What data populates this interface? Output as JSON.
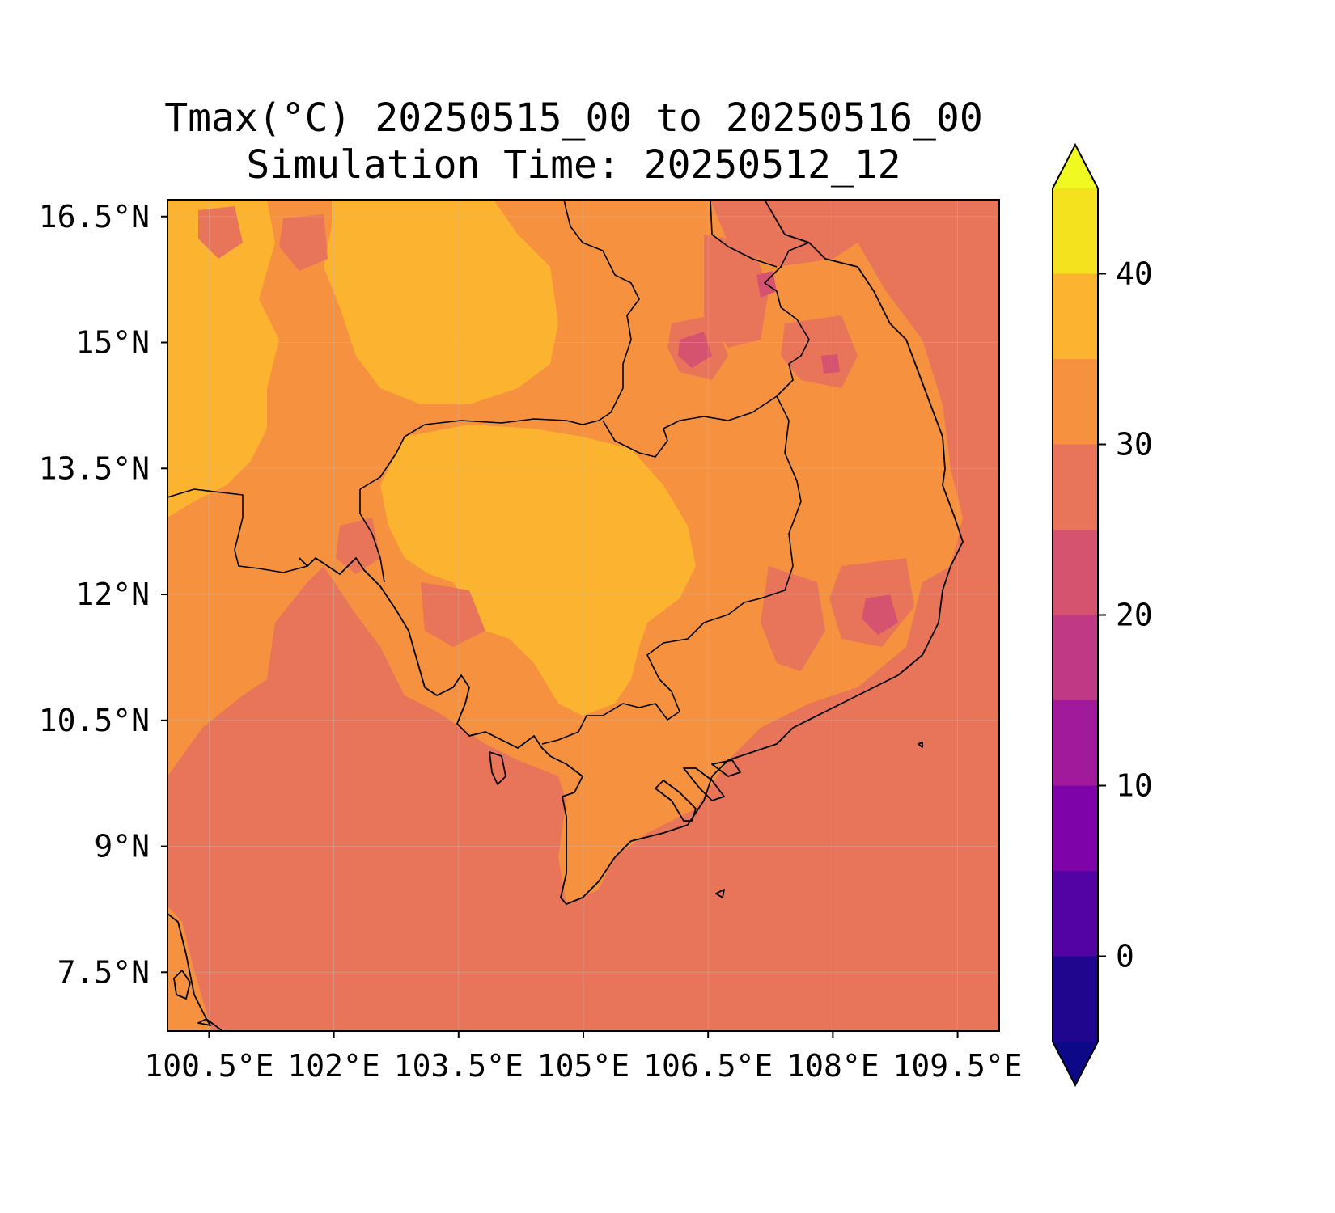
{
  "title": {
    "line1": "Tmax(°C) 20250515_00 to 20250516_00",
    "line2": "Simulation Time: 20250512_12"
  },
  "map": {
    "lon_range": [
      100.0,
      110.0
    ],
    "lat_range": [
      6.8,
      16.7
    ],
    "gridlines": true,
    "x_ticks": [
      {
        "value": 100.5,
        "label": "100.5°E"
      },
      {
        "value": 102.0,
        "label": "102°E"
      },
      {
        "value": 103.5,
        "label": "103.5°E"
      },
      {
        "value": 105.0,
        "label": "105°E"
      },
      {
        "value": 106.5,
        "label": "106.5°E"
      },
      {
        "value": 108.0,
        "label": "108°E"
      },
      {
        "value": 109.5,
        "label": "109.5°E"
      }
    ],
    "y_ticks": [
      {
        "value": 16.5,
        "label": "16.5°N"
      },
      {
        "value": 15.0,
        "label": "15°N"
      },
      {
        "value": 13.5,
        "label": "13.5°N"
      },
      {
        "value": 12.0,
        "label": "12°N"
      },
      {
        "value": 10.5,
        "label": "10.5°N"
      },
      {
        "value": 9.0,
        "label": "9°N"
      },
      {
        "value": 7.5,
        "label": "7.5°N"
      }
    ],
    "colors": {
      "band_25_30": "#e8745a",
      "band_30_35": "#f5913f",
      "band_35_40": "#fbb330",
      "band_20_25": "#d5536f",
      "coastline": "#000000"
    }
  },
  "colorbar": {
    "range": [
      -5,
      45
    ],
    "extend": "both",
    "bands": [
      {
        "from": -5,
        "to": 0,
        "color": "#20068f"
      },
      {
        "from": 0,
        "to": 5,
        "color": "#5302a3"
      },
      {
        "from": 5,
        "to": 10,
        "color": "#7e03a8"
      },
      {
        "from": 10,
        "to": 15,
        "color": "#a11a9b"
      },
      {
        "from": 15,
        "to": 20,
        "color": "#bf3984"
      },
      {
        "from": 20,
        "to": 25,
        "color": "#d5536f"
      },
      {
        "from": 25,
        "to": 30,
        "color": "#e8745a"
      },
      {
        "from": 30,
        "to": 35,
        "color": "#f5913f"
      },
      {
        "from": 35,
        "to": 40,
        "color": "#fbb330"
      },
      {
        "from": 40,
        "to": 45,
        "color": "#f4e21e"
      }
    ],
    "under_color": "#0d0887",
    "over_color": "#f0f921",
    "ticks": [
      {
        "value": 0,
        "label": "0"
      },
      {
        "value": 10,
        "label": "10"
      },
      {
        "value": 20,
        "label": "20"
      },
      {
        "value": 30,
        "label": "30"
      },
      {
        "value": 40,
        "label": "40"
      }
    ]
  }
}
